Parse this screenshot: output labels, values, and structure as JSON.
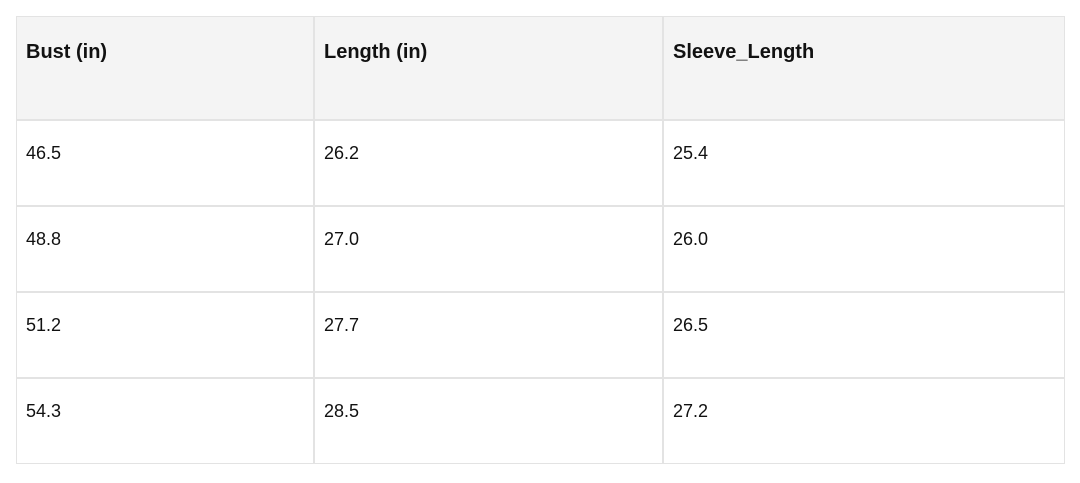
{
  "table": {
    "headers": [
      "Bust (in)",
      "Length (in)",
      "Sleeve_Length"
    ],
    "rows": [
      [
        "46.5",
        "26.2",
        "25.4"
      ],
      [
        "48.8",
        "27.0",
        "26.0"
      ],
      [
        "51.2",
        "27.7",
        "26.5"
      ],
      [
        "54.3",
        "28.5",
        "27.2"
      ]
    ]
  }
}
